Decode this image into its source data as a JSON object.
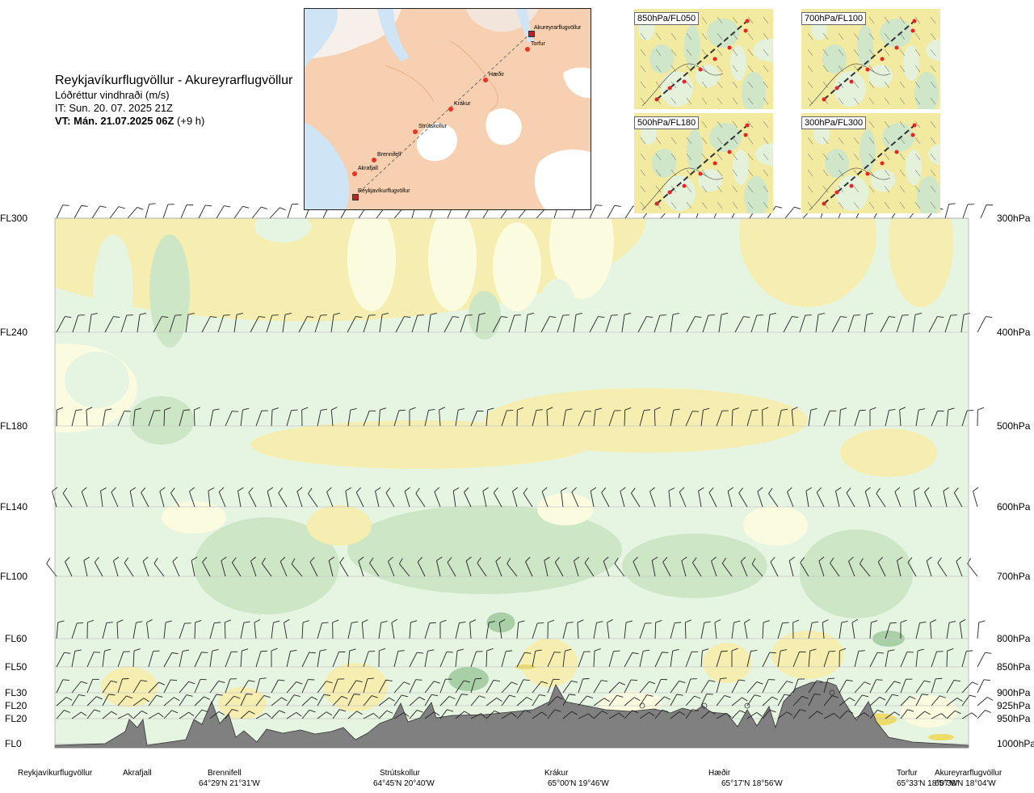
{
  "header": {
    "title": "Reykjavíkurflugvöllur - Akureyrarflugvöllur",
    "subtitle": "Lóðréttur vindhraði (m/s)",
    "init_time": "IT: Sun. 20. 07. 2025 21Z",
    "valid_time_bold": "VT: Mán. 21.07.2025 06Z",
    "valid_time_offset": " (+9 h)"
  },
  "route_map": {
    "waypoints": [
      {
        "name": "Akureyrarflugvöllur",
        "kind": "airport"
      },
      {
        "name": "Torfur",
        "kind": "point"
      },
      {
        "name": "Hæðir",
        "kind": "point"
      },
      {
        "name": "Krákur",
        "kind": "point"
      },
      {
        "name": "Strútskollur",
        "kind": "point"
      },
      {
        "name": "Brennifell",
        "kind": "point"
      },
      {
        "name": "Akrafjall",
        "kind": "point"
      },
      {
        "name": "Reykjavíkurflugvöllur",
        "kind": "airport"
      }
    ]
  },
  "level_maps": [
    {
      "label": "850hPa/FL050"
    },
    {
      "label": "700hPa/FL100"
    },
    {
      "label": "500hPa/FL180"
    },
    {
      "label": "300hPa/FL300"
    }
  ],
  "flight_levels": [
    "FL300",
    "FL240",
    "FL180",
    "FL140",
    "FL100",
    "FL60",
    "FL50",
    "FL30",
    "FL20",
    "FL20",
    "FL0"
  ],
  "pressure_levels": [
    "300hPa",
    "400hPa",
    "500hPa",
    "600hPa",
    "700hPa",
    "800hPa",
    "850hPa",
    "900hPa",
    "925hPa",
    "950hPa",
    "1000hPa"
  ],
  "bottom_points": [
    {
      "name": "Reykjavíkurflugvöllur",
      "coord": ""
    },
    {
      "name": "Akrafjall",
      "coord": ""
    },
    {
      "name": "Brennifell",
      "coord": "64°29'N 21°31'W"
    },
    {
      "name": "Strútskollur",
      "coord": "64°45'N 20°40'W"
    },
    {
      "name": "Krákur",
      "coord": "65°00'N 19°46'W"
    },
    {
      "name": "Hæðir",
      "coord": "65°17'N 18°56'W"
    },
    {
      "name": "Torfur",
      "coord": "65°33'N 18°07'W"
    },
    {
      "name": "Akureyrarflugvöllur",
      "coord": "65°39'N 18°04'W"
    }
  ],
  "colors": {
    "up_strong": "#a9cfa7",
    "up_moderate": "#cde6c6",
    "up_weak": "#e6f5e2",
    "neutral": "#fbfbe0",
    "down_weak": "#f6eeb0",
    "down_strong": "#eddb6a",
    "terrain": "#808080",
    "barb": "#222222"
  },
  "chart_data": {
    "type": "heatmap",
    "title": "Lóðréttur vindhraði (m/s)",
    "y_levels_fl": [
      "FL300",
      "FL240",
      "FL180",
      "FL140",
      "FL100",
      "FL60",
      "FL50",
      "FL30",
      "FL20",
      "FL20",
      "FL0"
    ],
    "y_levels_hpa": [
      "300hPa",
      "400hPa",
      "500hPa",
      "600hPa",
      "700hPa",
      "800hPa",
      "850hPa",
      "900hPa",
      "925hPa",
      "950hPa",
      "1000hPa"
    ],
    "x_points": [
      "Reykjavíkurflugvöllur",
      "Akrafjall",
      "Brennifell",
      "Strútskollur",
      "Krákur",
      "Hæðir",
      "Torfur",
      "Akureyrarflugvöllur"
    ],
    "legend": "none",
    "grid": true
  }
}
